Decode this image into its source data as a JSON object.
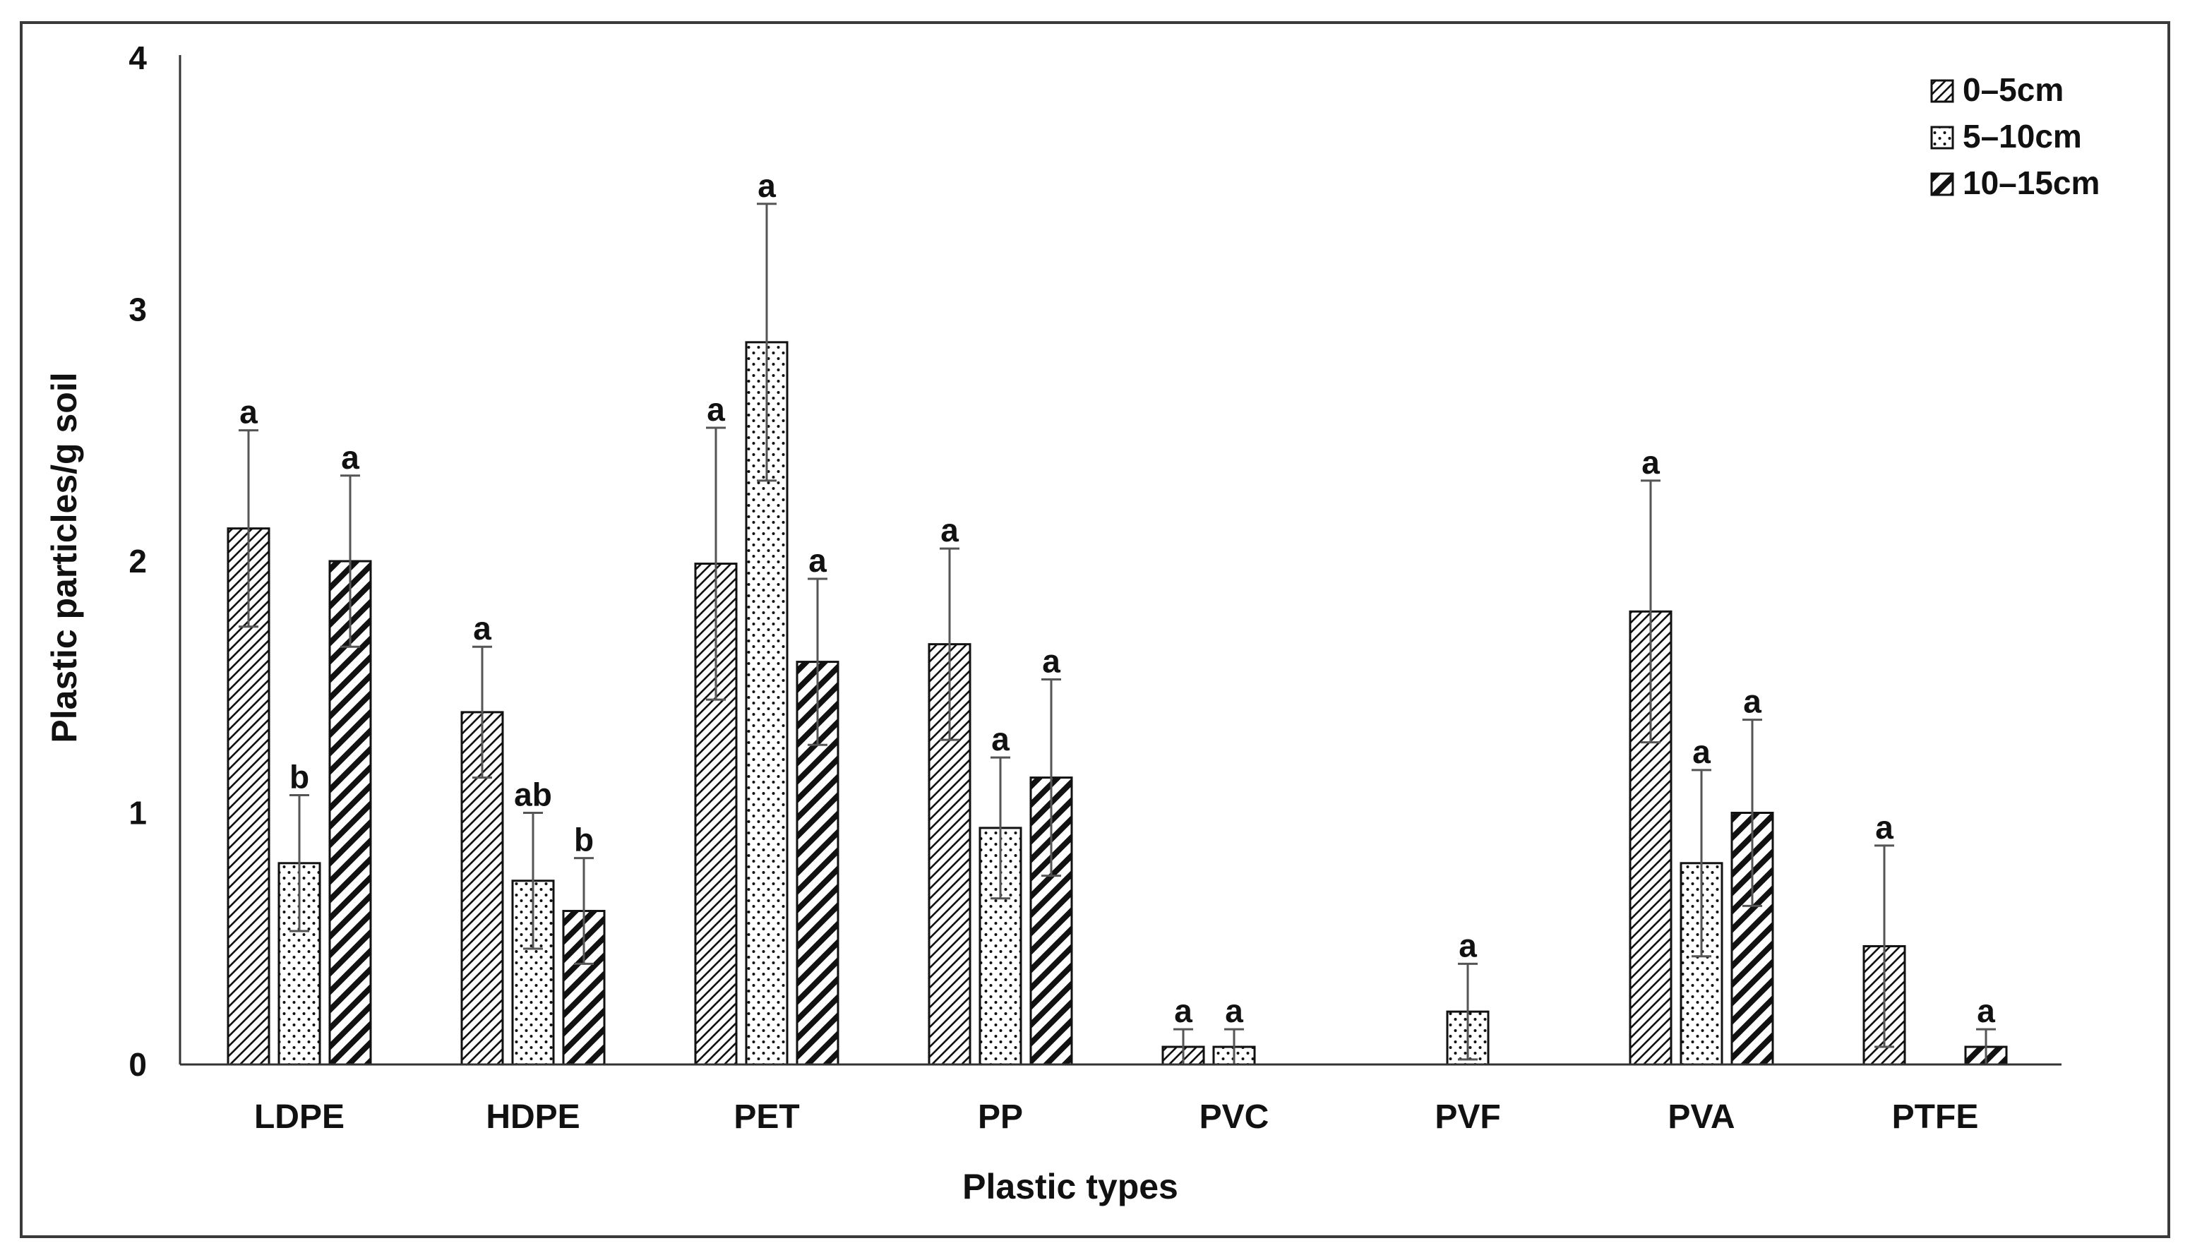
{
  "chart_data": {
    "type": "bar",
    "title": "",
    "xlabel": "Plastic types",
    "ylabel": "Plastic particles/g soil",
    "ylim": [
      0,
      4
    ],
    "yticks": [
      0,
      1,
      2,
      3,
      4
    ],
    "grid": false,
    "legend_position": "top-right",
    "categories": [
      "LDPE",
      "HDPE",
      "PET",
      "PP",
      "PVC",
      "PVF",
      "PVA",
      "PTFE"
    ],
    "series": [
      {
        "name": "0–5cm",
        "pattern": "diagonal-thin",
        "values": [
          2.13,
          1.4,
          1.99,
          1.67,
          0.07,
          null,
          1.8,
          0.47
        ],
        "errors": [
          0.39,
          0.26,
          0.54,
          0.38,
          0.07,
          null,
          0.52,
          0.4
        ],
        "significance": [
          "a",
          "a",
          "a",
          "a",
          "a",
          null,
          "a",
          "a"
        ]
      },
      {
        "name": "5–10cm",
        "pattern": "dotted",
        "values": [
          0.8,
          0.73,
          2.87,
          0.94,
          0.07,
          0.21,
          0.8,
          null
        ],
        "errors": [
          0.27,
          0.27,
          0.55,
          0.28,
          0.07,
          0.19,
          0.37,
          null
        ],
        "significance": [
          "b",
          "ab",
          "a",
          "a",
          "a",
          "a",
          "a",
          null
        ]
      },
      {
        "name": "10–15cm",
        "pattern": "diagonal-bold",
        "values": [
          2.0,
          0.61,
          1.6,
          1.14,
          null,
          null,
          1.0,
          0.07
        ],
        "errors": [
          0.34,
          0.21,
          0.33,
          0.39,
          null,
          null,
          0.37,
          0.07
        ],
        "significance": [
          "a",
          "b",
          "a",
          "a",
          null,
          null,
          "a",
          "a"
        ]
      }
    ],
    "colors": {
      "bar_stroke": "#111111",
      "axis": "#333333",
      "error_bar": "#555555",
      "frame": "#3a3a3a"
    }
  }
}
